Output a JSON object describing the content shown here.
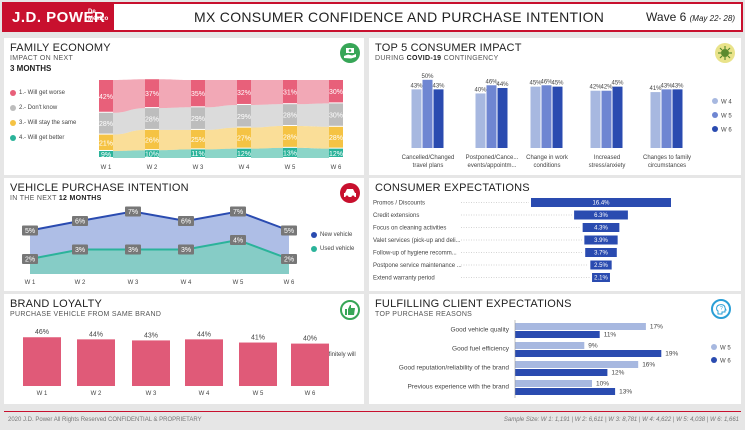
{
  "header": {
    "logo": "J.D. POWER",
    "logo_sub1": "De",
    "logo_sub2": "México",
    "title": "MX CONSUMER CONFIDENCE AND PURCHASE INTENTION",
    "wave": "Wave 6",
    "wave_dates": "(May 22- 28)"
  },
  "family": {
    "title": "FAMILY ECONOMY",
    "subtitle": "IMPACT ON NEXT",
    "subtitle2": "3 MONTHS",
    "icon": "money-hand-icon",
    "legend": [
      "1.- Will get worse",
      "2.- Don't know",
      "3.- Will stay the same",
      "4.- Will get better"
    ]
  },
  "top5": {
    "title": "TOP 5 CONSUMER IMPACT",
    "subtitle_pre": "DURING ",
    "subtitle_bold": "COVID-19",
    "subtitle_post": " CONTINGENCY",
    "icon": "virus-icon"
  },
  "vehicle": {
    "title": "VEHICLE PURCHASE INTENTION",
    "subtitle_pre": "IN THE NEXT ",
    "subtitle_bold": "12 MONTHS",
    "icon": "car-icon"
  },
  "expect": {
    "title": "CONSUMER EXPECTATIONS"
  },
  "loyalty": {
    "title": "BRAND LOYALTY",
    "subtitle": "PURCHASE VEHICLE FROM SAME BRAND",
    "icon": "thumbs-up-icon"
  },
  "fulfill": {
    "title": "FULFILLING CLIENT EXPECTATIONS",
    "subtitle": "TOP PURCHASE REASONS",
    "icon": "head-question-icon"
  },
  "footer": {
    "left": "2020 J.D. Power    All Rights Reserved    CONFIDENTIAL & PROPRIETARY",
    "right": "Sample Size: W 1: 1,191 | W 2: 6,611 | W 3: 8,781 | W 4: 4,622 | W 5: 4,038 | W 6: 1,661"
  },
  "chart_data": [
    {
      "id": "family",
      "type": "area",
      "categories": [
        "W 1",
        "W 2",
        "W 3",
        "W 4",
        "W 5",
        "W 6"
      ],
      "series": [
        {
          "name": "4.- Will get better",
          "color": "#2bb39a",
          "values": [
            9,
            10,
            11,
            12,
            13,
            12
          ]
        },
        {
          "name": "3.- Will stay the same",
          "color": "#f5c344",
          "values": [
            21,
            26,
            25,
            27,
            28,
            28
          ]
        },
        {
          "name": "2.- Don't know",
          "color": "#bdbdbd",
          "values": [
            28,
            28,
            29,
            29,
            28,
            30
          ]
        },
        {
          "name": "1.- Will get worse",
          "color": "#e8607a",
          "values": [
            42,
            37,
            35,
            32,
            31,
            30
          ]
        }
      ],
      "stacked": true
    },
    {
      "id": "top5",
      "type": "bar",
      "categories": [
        "Cancelled/Changed travel plans",
        "Postponed/Cance... events/appointm...",
        "Change in work conditions",
        "Increased stress/anxiety",
        "Changes to family circumstances"
      ],
      "series": [
        {
          "name": "W 4",
          "color": "#a7b8e0",
          "values": [
            43,
            40,
            45,
            42,
            41
          ]
        },
        {
          "name": "W 5",
          "color": "#6f86d2",
          "values": [
            50,
            46,
            46,
            42,
            43
          ]
        },
        {
          "name": "W 6",
          "color": "#2a4bb0",
          "values": [
            43,
            44,
            45,
            45,
            43
          ]
        }
      ],
      "ylim": [
        0,
        55
      ]
    },
    {
      "id": "vehicle",
      "type": "area",
      "categories": [
        "W 1",
        "W 2",
        "W 3",
        "W 4",
        "W 5",
        "W 6"
      ],
      "series": [
        {
          "name": "New vehicle",
          "color": "#2a4bb0",
          "values": [
            5,
            6,
            7,
            6,
            7,
            5
          ]
        },
        {
          "name": "Used vehicle",
          "color": "#2bb39a",
          "values": [
            2,
            3,
            3,
            3,
            4,
            2
          ]
        }
      ],
      "value_suffix": "%"
    },
    {
      "id": "expect",
      "type": "bar",
      "orientation": "horizontal-funnel",
      "categories": [
        "Promos / Discounts",
        "Credit extensions",
        "Focus on cleaning activities",
        "Valet services (pick-up and deli...",
        "Follow-up of hygiene recomm...",
        "Postpone service maintenance ...",
        "Extend warranty period"
      ],
      "values": [
        16.4,
        6.3,
        4.3,
        3.9,
        3.7,
        2.5,
        2.1
      ],
      "color": "#2a4bb0"
    },
    {
      "id": "loyalty",
      "type": "bar",
      "categories": [
        "W 1",
        "W 2",
        "W 3",
        "W 4",
        "W 5",
        "W 6"
      ],
      "series": [
        {
          "name": "Definitely will",
          "color": "#e05a78",
          "values": [
            46,
            44,
            43,
            44,
            41,
            40
          ]
        }
      ],
      "ylim": [
        0,
        50
      ]
    },
    {
      "id": "fulfill",
      "type": "bar",
      "orientation": "horizontal",
      "categories": [
        "Good vehicle quality",
        "Good fuel efficiency",
        "Good reputation/reliability of the brand",
        "Previous experience with the brand"
      ],
      "series": [
        {
          "name": "W 5",
          "color": "#a7b8e0",
          "values": [
            17,
            9,
            16,
            10
          ]
        },
        {
          "name": "W 6",
          "color": "#2a4bb0",
          "values": [
            11,
            19,
            12,
            13
          ]
        }
      ],
      "xlim": [
        0,
        20
      ]
    }
  ]
}
